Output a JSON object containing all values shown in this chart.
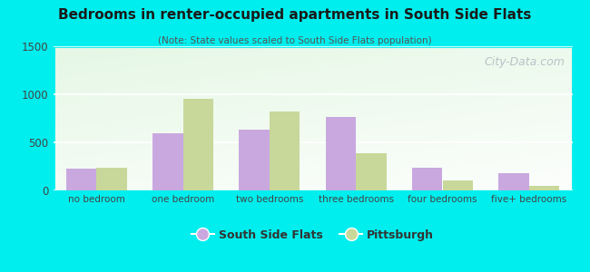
{
  "title": "Bedrooms in renter-occupied apartments in South Side Flats",
  "subtitle": "(Note: State values scaled to South Side Flats population)",
  "categories": [
    "no bedroom",
    "one bedroom",
    "two bedrooms",
    "three bedrooms",
    "four bedrooms",
    "five+ bedrooms"
  ],
  "south_side_flats": [
    230,
    590,
    630,
    760,
    240,
    175
  ],
  "pittsburgh": [
    240,
    950,
    820,
    390,
    105,
    50
  ],
  "ssf_color": "#c9a8e0",
  "pitt_color": "#c8d89a",
  "background_outer": "#00eeee",
  "grad_top_left": "#f0faf0",
  "grad_bottom_right": "#ffffff",
  "ylim": [
    0,
    1500
  ],
  "yticks": [
    0,
    500,
    1000,
    1500
  ],
  "legend_labels": [
    "South Side Flats",
    "Pittsburgh"
  ],
  "watermark": "City-Data.com",
  "bar_width": 0.35
}
